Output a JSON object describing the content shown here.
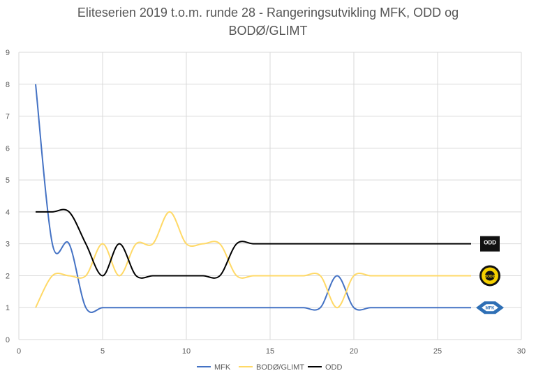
{
  "chart_data": {
    "type": "line",
    "title_lines": [
      "Eliteserien 2019 t.o.m. runde 28 - Rangeringsutvikling MFK, ODD og",
      "BODØ/GLIMT"
    ],
    "xlim": [
      0,
      30
    ],
    "ylim": [
      0,
      9
    ],
    "xticks": [
      0,
      5,
      10,
      15,
      20,
      25,
      30
    ],
    "yticks": [
      0,
      1,
      2,
      3,
      4,
      5,
      6,
      7,
      8,
      9
    ],
    "grid": true,
    "legend_position": "bottom",
    "x": [
      1,
      2,
      3,
      4,
      5,
      6,
      7,
      8,
      9,
      10,
      11,
      12,
      13,
      14,
      15,
      16,
      17,
      18,
      19,
      20,
      21,
      22,
      23,
      24,
      25,
      26,
      27
    ],
    "series": [
      {
        "name": "MFK",
        "color": "#4472C4",
        "values": [
          8,
          3,
          3,
          1,
          1,
          1,
          1,
          1,
          1,
          1,
          1,
          1,
          1,
          1,
          1,
          1,
          1,
          1,
          2,
          1,
          1,
          1,
          1,
          1,
          1,
          1,
          1
        ],
        "end_logo": "mfk-logo-icon"
      },
      {
        "name": "BODØ/GLIMT",
        "color": "#FFD966",
        "values": [
          1,
          2,
          2,
          2,
          3,
          2,
          3,
          3,
          4,
          3,
          3,
          3,
          2,
          2,
          2,
          2,
          2,
          2,
          1,
          2,
          2,
          2,
          2,
          2,
          2,
          2,
          2
        ],
        "end_logo": "bodo-glimt-logo-icon"
      },
      {
        "name": "ODD",
        "color": "#000000",
        "values": [
          4,
          4,
          4,
          3,
          2,
          3,
          2,
          2,
          2,
          2,
          2,
          2,
          3,
          3,
          3,
          3,
          3,
          3,
          3,
          3,
          3,
          3,
          3,
          3,
          3,
          3,
          3
        ],
        "end_logo": "odd-logo-icon"
      }
    ],
    "logo_text": {
      "odd": "ODD",
      "bodo": "BODØ",
      "mfk": "MFK"
    }
  }
}
